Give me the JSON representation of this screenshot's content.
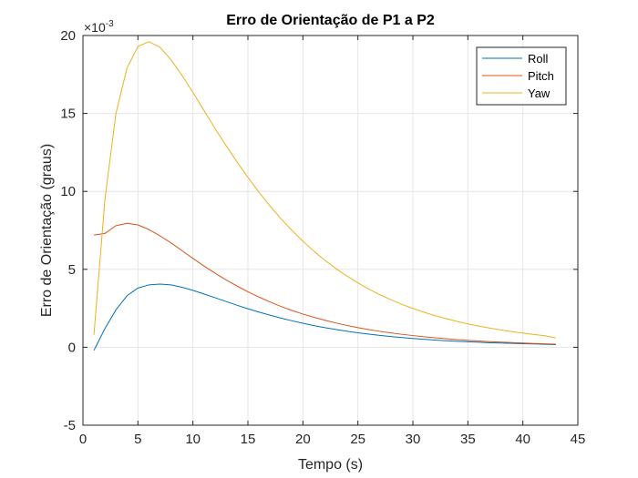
{
  "chart_data": {
    "type": "line",
    "title": "Erro de Orientação de P1 a P2",
    "xlabel": "Tempo (s)",
    "ylabel": "Erro de Orientação (graus)",
    "y_exponent_prefix": "×10",
    "y_exponent": "-3",
    "xlim": [
      0,
      45
    ],
    "ylim": [
      -5,
      20
    ],
    "x_ticks": [
      "0",
      "5",
      "10",
      "15",
      "20",
      "25",
      "30",
      "35",
      "40",
      "45"
    ],
    "y_ticks": [
      "-5",
      "0",
      "5",
      "10",
      "15",
      "20"
    ],
    "grid": true,
    "legend_position": "top-right",
    "x": [
      1,
      2,
      3,
      4,
      5,
      6,
      7,
      8,
      9,
      10,
      11,
      12,
      13,
      14,
      15,
      16,
      17,
      18,
      19,
      20,
      21,
      22,
      23,
      24,
      25,
      26,
      27,
      28,
      29,
      30,
      31,
      32,
      33,
      34,
      35,
      36,
      37,
      38,
      39,
      40,
      41,
      42,
      43
    ],
    "series": [
      {
        "name": "Roll",
        "color": "#0072BD",
        "values": [
          -0.2,
          1.2,
          2.4,
          3.3,
          3.8,
          4.0,
          4.05,
          4.0,
          3.85,
          3.65,
          3.42,
          3.18,
          2.94,
          2.7,
          2.47,
          2.26,
          2.06,
          1.87,
          1.7,
          1.54,
          1.39,
          1.26,
          1.14,
          1.03,
          0.93,
          0.84,
          0.76,
          0.69,
          0.62,
          0.56,
          0.51,
          0.46,
          0.42,
          0.38,
          0.35,
          0.32,
          0.29,
          0.27,
          0.25,
          0.23,
          0.21,
          0.19,
          0.17
        ]
      },
      {
        "name": "Pitch",
        "color": "#D95319",
        "values": [
          7.2,
          7.3,
          7.8,
          7.95,
          7.85,
          7.55,
          7.15,
          6.7,
          6.2,
          5.7,
          5.22,
          4.76,
          4.33,
          3.93,
          3.56,
          3.22,
          2.91,
          2.62,
          2.36,
          2.13,
          1.92,
          1.73,
          1.56,
          1.4,
          1.26,
          1.13,
          1.02,
          0.92,
          0.83,
          0.75,
          0.67,
          0.61,
          0.55,
          0.49,
          0.44,
          0.4,
          0.36,
          0.33,
          0.3,
          0.27,
          0.24,
          0.22,
          0.2
        ]
      },
      {
        "name": "Yaw",
        "color": "#EDB120",
        "values": [
          0.8,
          9.5,
          15.0,
          17.9,
          19.3,
          19.6,
          19.25,
          18.45,
          17.45,
          16.35,
          15.2,
          14.05,
          12.95,
          11.9,
          10.9,
          9.95,
          9.07,
          8.25,
          7.5,
          6.8,
          6.16,
          5.58,
          5.05,
          4.57,
          4.13,
          3.73,
          3.37,
          3.05,
          2.75,
          2.49,
          2.25,
          2.03,
          1.84,
          1.66,
          1.5,
          1.36,
          1.23,
          1.11,
          1.0,
          0.91,
          0.82,
          0.74,
          0.6
        ]
      }
    ]
  }
}
